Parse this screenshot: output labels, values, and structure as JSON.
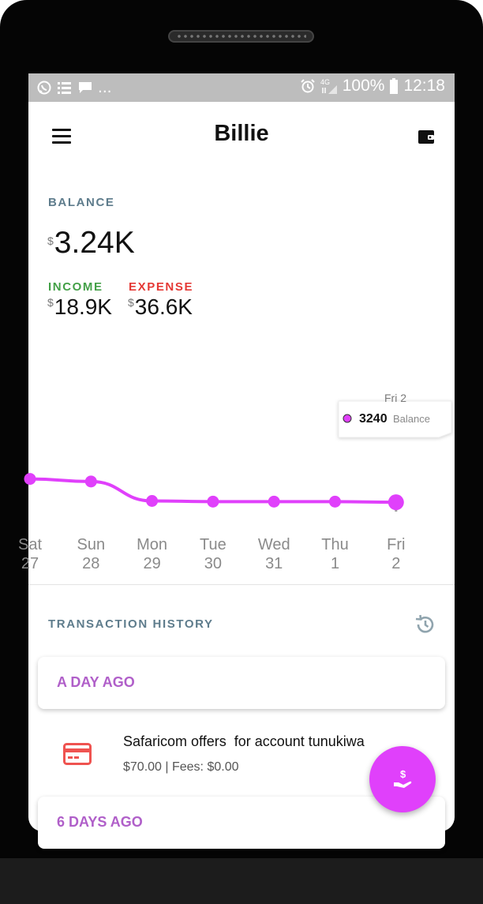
{
  "status_bar": {
    "dots": "...",
    "battery_text": "100%",
    "time": "12:18",
    "network": "4G"
  },
  "app": {
    "title": "Billie"
  },
  "summary": {
    "balance_label": "BALANCE",
    "currency_symbol": "$",
    "balance_value": "3.24K",
    "income_label": "INCOME",
    "income_value": "18.9K",
    "expense_label": "EXPENSE",
    "expense_value": "36.6K"
  },
  "chart_data": {
    "type": "line",
    "title": "",
    "xlabel": "",
    "ylabel": "",
    "x": [
      "Sat 27",
      "Sun 28",
      "Mon 29",
      "Tue 30",
      "Wed 31",
      "Thu 1",
      "Fri 2"
    ],
    "day_names": [
      "Sat",
      "Sun",
      "Mon",
      "Tue",
      "Wed",
      "Thu",
      "Fri"
    ],
    "day_numbers": [
      "27",
      "28",
      "29",
      "30",
      "31",
      "1",
      "2"
    ],
    "series": [
      {
        "name": "Balance",
        "values": [
          3600,
          3560,
          3260,
          3250,
          3250,
          3250,
          3240
        ]
      }
    ],
    "ylim": [
      2000,
      4800
    ],
    "grid": false,
    "line_color": "#e040fb",
    "tooltip": {
      "date": "Fri 2",
      "value": "3240",
      "label": "Balance"
    }
  },
  "transaction_history": {
    "title": "TRANSACTION HISTORY",
    "groups": [
      {
        "title": "A DAY AGO"
      },
      {
        "title": "6 DAYS AGO"
      }
    ],
    "items": [
      {
        "title": "Safaricom offers  for account tunukiwa",
        "detail": "$70.00 | Fees: $0.00",
        "icon": "credit-card-icon",
        "icon_color": "#ef5350"
      }
    ]
  },
  "fab": {
    "icon": "hand-dollar-icon",
    "color": "#e040fb"
  },
  "colors": {
    "accent": "#e040fb",
    "income": "#43a047",
    "expense": "#e53935",
    "label": "#5e7c8c",
    "group_title": "#b05fc9"
  }
}
